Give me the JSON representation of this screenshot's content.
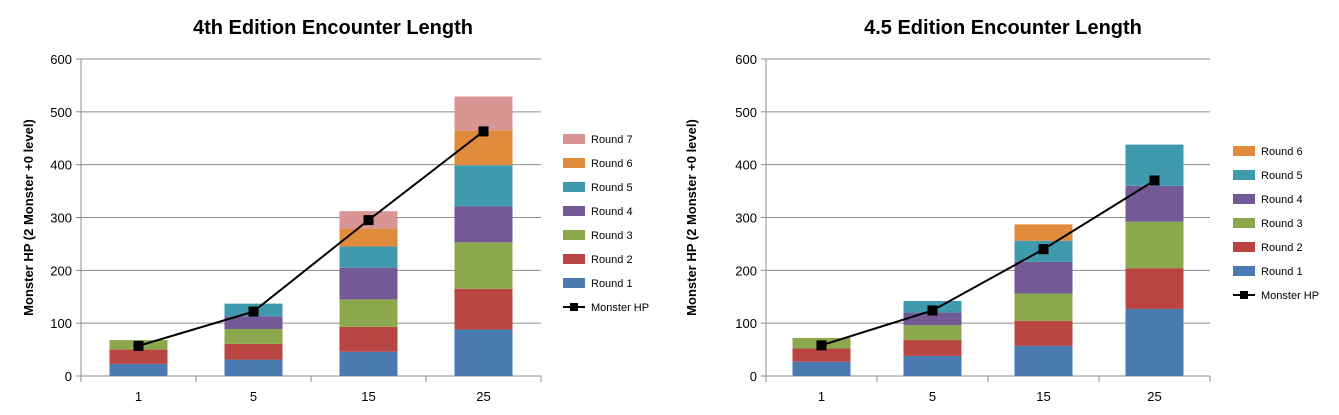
{
  "chart_data": [
    {
      "type": "bar",
      "stacked": true,
      "title": "4th Edition Encounter Length",
      "ylabel": "Monster HP (2 Monster +0 level)",
      "xlabel": "",
      "categories": [
        "1",
        "5",
        "15",
        "25"
      ],
      "ylim": [
        0,
        600
      ],
      "yticks": [
        0,
        100,
        200,
        300,
        400,
        500,
        600
      ],
      "grid": true,
      "legend_position": "right",
      "series": [
        {
          "name": "Round 1",
          "color": "#4a7ab0",
          "values": [
            23,
            31,
            46,
            88
          ]
        },
        {
          "name": "Round 2",
          "color": "#b84542",
          "values": [
            27,
            30,
            47,
            77
          ]
        },
        {
          "name": "Round 3",
          "color": "#8ca84c",
          "values": [
            18,
            28,
            52,
            88
          ]
        },
        {
          "name": "Round 4",
          "color": "#735a96",
          "values": [
            0,
            24,
            60,
            68
          ]
        },
        {
          "name": "Round 5",
          "color": "#3f9aae",
          "values": [
            0,
            24,
            40,
            78
          ]
        },
        {
          "name": "Round 6",
          "color": "#e08a3c",
          "values": [
            0,
            0,
            34,
            66
          ]
        },
        {
          "name": "Round 7",
          "color": "#d99594",
          "values": [
            0,
            0,
            33,
            64
          ]
        }
      ],
      "line_series": {
        "name": "Monster HP",
        "color": "#000000",
        "values": [
          57,
          122,
          295,
          463
        ]
      }
    },
    {
      "type": "bar",
      "stacked": true,
      "title": "4.5 Edition Encounter Length",
      "ylabel": "Monster HP (2 Monster +0 level)",
      "xlabel": "",
      "categories": [
        "1",
        "5",
        "15",
        "25"
      ],
      "ylim": [
        0,
        600
      ],
      "yticks": [
        0,
        100,
        200,
        300,
        400,
        500,
        600
      ],
      "grid": true,
      "legend_position": "right",
      "series": [
        {
          "name": "Round 1",
          "color": "#4a7ab0",
          "values": [
            27,
            38,
            57,
            127
          ]
        },
        {
          "name": "Round 2",
          "color": "#b84542",
          "values": [
            25,
            30,
            47,
            77
          ]
        },
        {
          "name": "Round 3",
          "color": "#8ca84c",
          "values": [
            20,
            28,
            52,
            88
          ]
        },
        {
          "name": "Round 4",
          "color": "#735a96",
          "values": [
            0,
            24,
            60,
            68
          ]
        },
        {
          "name": "Round 5",
          "color": "#3f9aae",
          "values": [
            0,
            22,
            40,
            78
          ]
        },
        {
          "name": "Round 6",
          "color": "#e08a3c",
          "values": [
            0,
            0,
            31,
            0
          ]
        }
      ],
      "line_series": {
        "name": "Monster HP",
        "color": "#000000",
        "values": [
          58,
          124,
          240,
          370
        ]
      }
    }
  ]
}
